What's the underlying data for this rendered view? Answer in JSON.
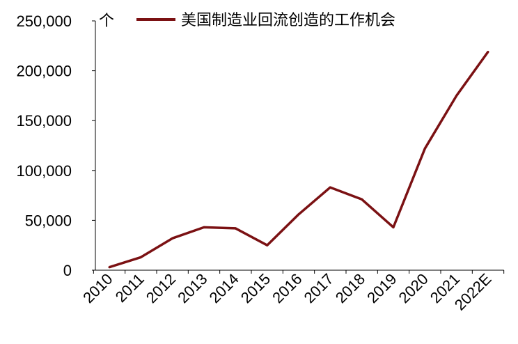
{
  "chart_data": {
    "type": "line",
    "unit_label": "个",
    "categories": [
      "2010",
      "2011",
      "2012",
      "2013",
      "2014",
      "2015",
      "2016",
      "2017",
      "2018",
      "2019",
      "2020",
      "2021",
      "2022E"
    ],
    "series": [
      {
        "name": "美国制造业回流创造的工作机会",
        "color": "#7b1113",
        "values": [
          3000,
          13000,
          32000,
          43000,
          42000,
          25000,
          56000,
          83000,
          71000,
          43000,
          122000,
          175000,
          219000
        ]
      }
    ],
    "yticks": [
      "0",
      "50,000",
      "100,000",
      "150,000",
      "200,000",
      "250,000"
    ],
    "ylim": [
      0,
      250000
    ],
    "grid": false,
    "legend_position": "top"
  }
}
